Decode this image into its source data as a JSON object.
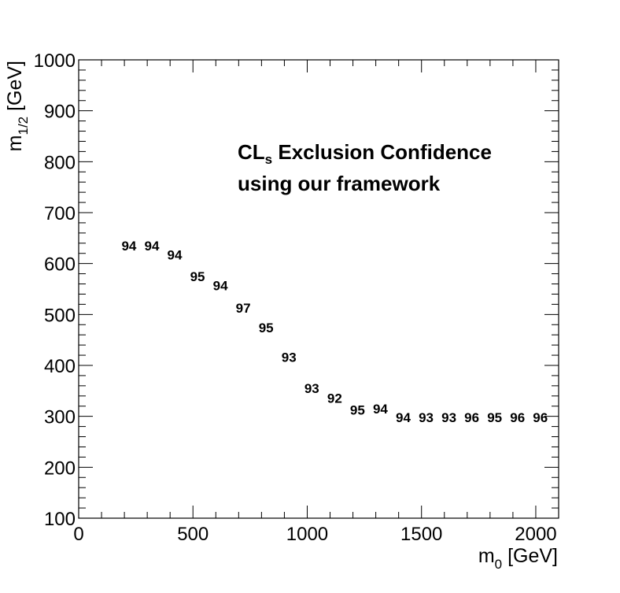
{
  "chart_data": {
    "type": "scatter",
    "title": "",
    "xlim": [
      0,
      2100
    ],
    "ylim": [
      100,
      1000
    ],
    "grid": false,
    "xlabel": {
      "main": "m",
      "sub": "0",
      "unit": " [GeV]"
    },
    "ylabel": {
      "main": "m",
      "sub": "1/2",
      "unit": " [GeV]"
    },
    "x_ticks": [
      0,
      500,
      1000,
      1500,
      2000
    ],
    "y_ticks": [
      100,
      200,
      300,
      400,
      500,
      600,
      700,
      800,
      900,
      1000
    ],
    "annotation": {
      "line1_main": "CL",
      "line1_sub": "s",
      "line1_rest": " Exclusion Confidence",
      "line2": "using our framework"
    },
    "points": [
      {
        "x": 220,
        "y": 635,
        "label": "94"
      },
      {
        "x": 320,
        "y": 635,
        "label": "94"
      },
      {
        "x": 420,
        "y": 617,
        "label": "94"
      },
      {
        "x": 520,
        "y": 575,
        "label": "95"
      },
      {
        "x": 620,
        "y": 557,
        "label": "94"
      },
      {
        "x": 720,
        "y": 513,
        "label": "97"
      },
      {
        "x": 820,
        "y": 474,
        "label": "95"
      },
      {
        "x": 920,
        "y": 416,
        "label": "93"
      },
      {
        "x": 1020,
        "y": 355,
        "label": "93"
      },
      {
        "x": 1120,
        "y": 336,
        "label": "92"
      },
      {
        "x": 1220,
        "y": 313,
        "label": "95"
      },
      {
        "x": 1320,
        "y": 315,
        "label": "94"
      },
      {
        "x": 1420,
        "y": 298,
        "label": "94"
      },
      {
        "x": 1520,
        "y": 298,
        "label": "93"
      },
      {
        "x": 1620,
        "y": 298,
        "label": "93"
      },
      {
        "x": 1720,
        "y": 298,
        "label": "96"
      },
      {
        "x": 1820,
        "y": 298,
        "label": "95"
      },
      {
        "x": 1920,
        "y": 298,
        "label": "96"
      },
      {
        "x": 2020,
        "y": 298,
        "label": "96"
      }
    ]
  }
}
